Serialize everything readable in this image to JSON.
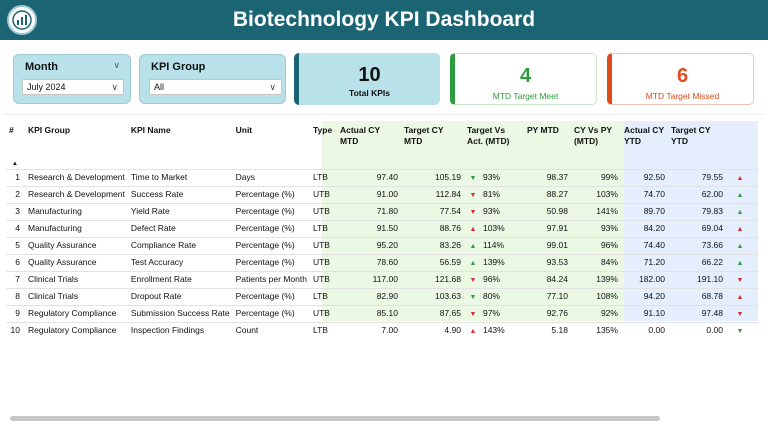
{
  "header": {
    "title": "Biotechnology KPI Dashboard",
    "colors": {
      "header_bg": "#1a6473",
      "mtd_band": "#eaf8e4",
      "ytd_band": "#e4eefc",
      "meet": "#2e9c3e",
      "missed": "#e04a1c"
    }
  },
  "filters": {
    "month": {
      "label": "Month",
      "value": "July 2024"
    },
    "kpi_group": {
      "label": "KPI Group",
      "value": "All"
    }
  },
  "cards": {
    "total": {
      "value": "10",
      "caption": "Total KPIs"
    },
    "meet": {
      "value": "4",
      "caption": "MTD Target Meet"
    },
    "missed": {
      "value": "6",
      "caption": "MTD Target Missed"
    }
  },
  "table": {
    "columns": [
      "#",
      "KPI Group",
      "KPI Name",
      "Unit",
      "Type",
      "Actual CY MTD",
      "Target CY MTD",
      "Target Vs Act. (MTD)",
      "PY MTD",
      "CY Vs PY (MTD)",
      "Actual CY YTD",
      "Target CY YTD"
    ],
    "rows": [
      {
        "n": "1",
        "group": "Research & Development",
        "name": "Time to Market",
        "unit": "Days",
        "type": "LTB",
        "act_mtd": "97.40",
        "tgt_mtd": "105.19",
        "mtd_icon": "triangle-down-green-icon",
        "tva": "93%",
        "py_mtd": "98.37",
        "cvp": "99%",
        "act_ytd": "92.50",
        "tgt_ytd": "79.55",
        "ytd_icon": "triangle-up-red-icon"
      },
      {
        "n": "2",
        "group": "Research & Development",
        "name": "Success Rate",
        "unit": "Percentage (%)",
        "type": "UTB",
        "act_mtd": "91.00",
        "tgt_mtd": "112.84",
        "mtd_icon": "triangle-down-red-icon",
        "tva": "81%",
        "py_mtd": "88.27",
        "cvp": "103%",
        "act_ytd": "74.70",
        "tgt_ytd": "62.00",
        "ytd_icon": "triangle-up-green-icon"
      },
      {
        "n": "3",
        "group": "Manufacturing",
        "name": "Yield Rate",
        "unit": "Percentage (%)",
        "type": "UTB",
        "act_mtd": "71.80",
        "tgt_mtd": "77.54",
        "mtd_icon": "triangle-down-red-icon",
        "tva": "93%",
        "py_mtd": "50.98",
        "cvp": "141%",
        "act_ytd": "89.70",
        "tgt_ytd": "79.83",
        "ytd_icon": "triangle-up-green-icon"
      },
      {
        "n": "4",
        "group": "Manufacturing",
        "name": "Defect Rate",
        "unit": "Percentage (%)",
        "type": "LTB",
        "act_mtd": "91.50",
        "tgt_mtd": "88.76",
        "mtd_icon": "triangle-up-red-icon",
        "tva": "103%",
        "py_mtd": "97.91",
        "cvp": "93%",
        "act_ytd": "84.20",
        "tgt_ytd": "69.04",
        "ytd_icon": "triangle-up-red-icon"
      },
      {
        "n": "5",
        "group": "Quality Assurance",
        "name": "Compliance Rate",
        "unit": "Percentage (%)",
        "type": "UTB",
        "act_mtd": "95.20",
        "tgt_mtd": "83.26",
        "mtd_icon": "triangle-up-green-icon",
        "tva": "114%",
        "py_mtd": "99.01",
        "cvp": "96%",
        "act_ytd": "74.40",
        "tgt_ytd": "73.66",
        "ytd_icon": "triangle-up-green-icon"
      },
      {
        "n": "6",
        "group": "Quality Assurance",
        "name": "Test Accuracy",
        "unit": "Percentage (%)",
        "type": "UTB",
        "act_mtd": "78.60",
        "tgt_mtd": "56.59",
        "mtd_icon": "triangle-up-green-icon",
        "tva": "139%",
        "py_mtd": "93.53",
        "cvp": "84%",
        "act_ytd": "71.20",
        "tgt_ytd": "66.22",
        "ytd_icon": "triangle-up-green-icon"
      },
      {
        "n": "7",
        "group": "Clinical Trials",
        "name": "Enrollment Rate",
        "unit": "Patients per Month",
        "type": "UTB",
        "act_mtd": "117.00",
        "tgt_mtd": "121.68",
        "mtd_icon": "triangle-down-red-icon",
        "tva": "96%",
        "py_mtd": "84.24",
        "cvp": "139%",
        "act_ytd": "182.00",
        "tgt_ytd": "191.10",
        "ytd_icon": "triangle-down-red-icon"
      },
      {
        "n": "8",
        "group": "Clinical Trials",
        "name": "Dropout Rate",
        "unit": "Percentage (%)",
        "type": "LTB",
        "act_mtd": "82.90",
        "tgt_mtd": "103.63",
        "mtd_icon": "triangle-down-green-icon",
        "tva": "80%",
        "py_mtd": "77.10",
        "cvp": "108%",
        "act_ytd": "94.20",
        "tgt_ytd": "68.78",
        "ytd_icon": "triangle-up-red-icon"
      },
      {
        "n": "9",
        "group": "Regulatory Compliance",
        "name": "Submission Success Rate",
        "unit": "Percentage (%)",
        "type": "UTB",
        "act_mtd": "85.10",
        "tgt_mtd": "87.65",
        "mtd_icon": "triangle-down-red-icon",
        "tva": "97%",
        "py_mtd": "92.76",
        "cvp": "92%",
        "act_ytd": "91.10",
        "tgt_ytd": "97.48",
        "ytd_icon": "triangle-down-red-icon"
      },
      {
        "n": "10",
        "group": "Regulatory Compliance",
        "name": "Inspection Findings",
        "unit": "Count",
        "type": "LTB",
        "act_mtd": "7.00",
        "tgt_mtd": "4.90",
        "mtd_icon": "triangle-up-red-icon",
        "tva": "143%",
        "py_mtd": "5.18",
        "cvp": "135%",
        "act_ytd": "0.00",
        "tgt_ytd": "0.00",
        "ytd_icon": "triangle-down-green-icon"
      }
    ]
  }
}
